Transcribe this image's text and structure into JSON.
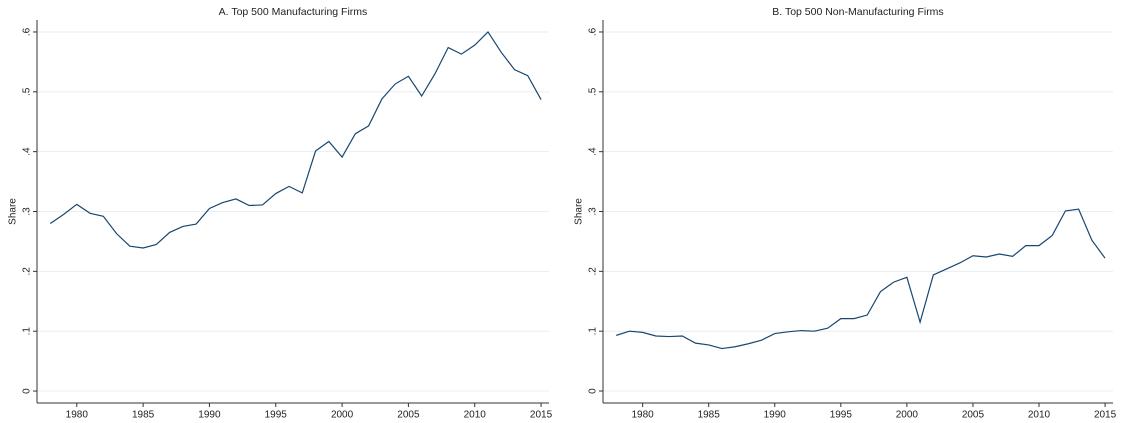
{
  "chart_data": [
    {
      "type": "line",
      "title": "A. Top 500 Manufacturing Firms",
      "ylabel": "Share",
      "x": [
        1978,
        1979,
        1980,
        1981,
        1982,
        1983,
        1984,
        1985,
        1986,
        1987,
        1988,
        1989,
        1990,
        1991,
        1992,
        1993,
        1994,
        1995,
        1996,
        1997,
        1998,
        1999,
        2000,
        2001,
        2002,
        2003,
        2004,
        2005,
        2006,
        2007,
        2008,
        2009,
        2010,
        2011,
        2012,
        2013,
        2014,
        2015
      ],
      "series": [
        {
          "color": "#1a476f",
          "values": [
            0.28,
            0.295,
            0.312,
            0.297,
            0.292,
            0.263,
            0.242,
            0.239,
            0.245,
            0.265,
            0.275,
            0.279,
            0.305,
            0.315,
            0.321,
            0.31,
            0.311,
            0.33,
            0.342,
            0.331,
            0.401,
            0.417,
            0.391,
            0.43,
            0.443,
            0.488,
            0.513,
            0.526,
            0.493,
            0.53,
            0.574,
            0.563,
            0.578,
            0.6,
            0.566,
            0.537,
            0.527,
            0.487
          ]
        }
      ],
      "xlim": [
        1977,
        2015.6
      ],
      "xticks": [
        1980,
        1985,
        1990,
        1995,
        2000,
        2005,
        2010,
        2015
      ],
      "ylim": [
        -0.02,
        0.62
      ],
      "yticks": [
        0,
        {
          "value": 0.1,
          "label": ".1"
        },
        {
          "value": 0.2,
          "label": ".2"
        },
        {
          "value": 0.3,
          "label": ".3"
        },
        {
          "value": 0.4,
          "label": ".4"
        },
        {
          "value": 0.5,
          "label": ".5"
        },
        {
          "value": 0.6,
          "label": ".6"
        }
      ],
      "grid": true
    },
    {
      "type": "line",
      "title": "B. Top 500 Non-Manufacturing Firms",
      "ylabel": "Share",
      "x": [
        1978,
        1979,
        1980,
        1981,
        1982,
        1983,
        1984,
        1985,
        1986,
        1987,
        1988,
        1989,
        1990,
        1991,
        1992,
        1993,
        1994,
        1995,
        1996,
        1997,
        1998,
        1999,
        2000,
        2001,
        2002,
        2003,
        2004,
        2005,
        2006,
        2007,
        2008,
        2009,
        2010,
        2011,
        2012,
        2013,
        2014,
        2015
      ],
      "series": [
        {
          "color": "#1a476f",
          "values": [
            0.093,
            0.1,
            0.098,
            0.092,
            0.091,
            0.092,
            0.08,
            0.077,
            0.071,
            0.074,
            0.079,
            0.085,
            0.096,
            0.099,
            0.101,
            0.1,
            0.105,
            0.121,
            0.121,
            0.127,
            0.166,
            0.182,
            0.19,
            0.115,
            0.194,
            0.204,
            0.214,
            0.226,
            0.224,
            0.229,
            0.225,
            0.243,
            0.243,
            0.26,
            0.301,
            0.304,
            0.252,
            0.222
          ]
        }
      ],
      "xlim": [
        1977,
        2015.6
      ],
      "xticks": [
        1980,
        1985,
        1990,
        1995,
        2000,
        2005,
        2010,
        2015
      ],
      "ylim": [
        -0.02,
        0.62
      ],
      "yticks": [
        0,
        {
          "value": 0.1,
          "label": ".1"
        },
        {
          "value": 0.2,
          "label": ".2"
        },
        {
          "value": 0.3,
          "label": ".3"
        },
        {
          "value": 0.4,
          "label": ".4"
        },
        {
          "value": 0.5,
          "label": ".5"
        },
        {
          "value": 0.6,
          "label": ".6"
        }
      ],
      "grid": true
    }
  ]
}
